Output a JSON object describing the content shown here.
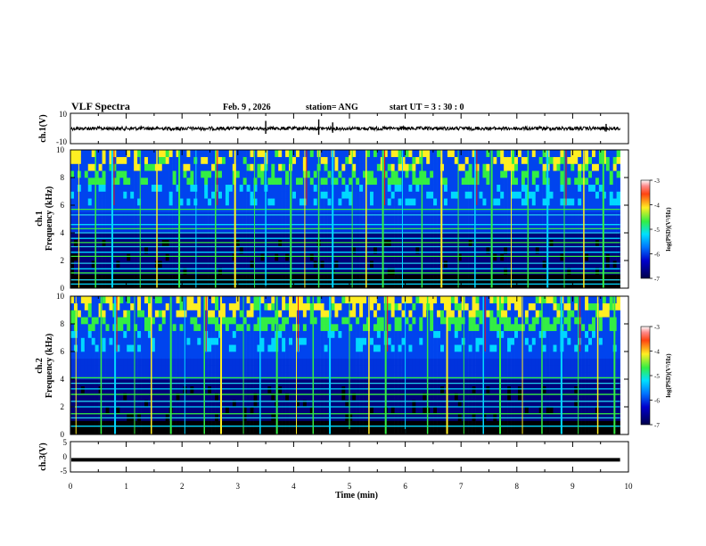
{
  "header": {
    "title": "VLF Spectra",
    "date": "Feb. 9  , 2026",
    "station": "station= ANG",
    "start": "start  UT =   3  : 30 : 0"
  },
  "colors": {
    "black": "#000000",
    "navy": "#00007a",
    "blue": "#0033dd",
    "cyan": "#00d8ff",
    "green": "#33ee44",
    "yellow": "#ffee22",
    "red": "#ee1111",
    "white": "#ffffff"
  },
  "chart_data": [
    {
      "type": "line",
      "panel": "ch1-waveform",
      "ylabel": "ch.1(V)",
      "yticks": [
        "10",
        "-10"
      ],
      "ylim": [
        -10,
        10
      ],
      "baseline": 0,
      "spikes": [
        {
          "t": 3.5,
          "v": 5
        },
        {
          "t": 4.45,
          "v": 6
        },
        {
          "t": 4.7,
          "v": 4
        },
        {
          "t": 9.6,
          "v": 3
        }
      ]
    },
    {
      "type": "heatmap",
      "panel": "ch1-spectrogram",
      "xlabel": "",
      "ylabel": "Frequency (kHz)",
      "channel_label": "ch.1",
      "xlim": [
        0,
        10
      ],
      "ylim": [
        0,
        10
      ],
      "yticks": [
        "0",
        "2",
        "4",
        "6",
        "8",
        "10"
      ],
      "colorbar": {
        "label": "log(PSD)(V²/Hz)",
        "ticks": [
          "-3",
          "-4",
          "-5",
          "-6",
          "-7"
        ],
        "range": [
          -7,
          -3
        ]
      },
      "lines_khz": [
        0.3,
        0.6,
        1.1,
        1.4,
        1.8,
        2.3,
        2.6,
        3.0,
        3.3,
        3.6,
        4.0,
        4.3,
        4.6,
        5.3,
        5.7
      ],
      "sferic_times_min": [
        0.15,
        0.45,
        0.75,
        1.25,
        1.55,
        1.95,
        2.25,
        2.6,
        2.95,
        3.3,
        3.5,
        3.95,
        4.2,
        4.45,
        4.7,
        5.05,
        5.3,
        5.6,
        5.95,
        6.3,
        6.65,
        6.95,
        7.25,
        7.55,
        7.9,
        8.2,
        8.55,
        8.85,
        9.2,
        9.55
      ]
    },
    {
      "type": "heatmap",
      "panel": "ch2-spectrogram",
      "xlabel": "",
      "ylabel": "Frequency (kHz)",
      "channel_label": "ch.2",
      "xlim": [
        0,
        10
      ],
      "ylim": [
        0,
        10
      ],
      "yticks": [
        "0",
        "2",
        "4",
        "6",
        "8",
        "10"
      ],
      "colorbar": {
        "label": "log(PSD)(V²/Hz)",
        "ticks": [
          "-3",
          "-4",
          "-5",
          "-6",
          "-7"
        ],
        "range": [
          -7,
          -3
        ]
      },
      "lines_khz": [
        0.6,
        1.2,
        1.5,
        2.0,
        2.4,
        2.9,
        3.3,
        3.7,
        4.1
      ],
      "sferic_times_min": [
        0.1,
        0.55,
        0.8,
        1.15,
        1.45,
        1.8,
        2.05,
        2.4,
        2.7,
        3.1,
        3.4,
        3.7,
        4.05,
        4.35,
        4.65,
        5.0,
        5.35,
        5.65,
        6.0,
        6.4,
        6.75,
        7.05,
        7.4,
        7.7,
        8.1,
        8.45,
        8.8,
        9.1,
        9.45,
        9.75
      ]
    },
    {
      "type": "line",
      "panel": "ch3-waveform",
      "ylabel": "ch.3(V)",
      "yticks": [
        "5",
        "0",
        "-5"
      ],
      "ylim": [
        -5,
        5
      ],
      "baseline": -1
    }
  ],
  "xaxis": {
    "label": "Time  (min)",
    "ticks": [
      "0",
      "1",
      "2",
      "3",
      "4",
      "5",
      "6",
      "7",
      "8",
      "9",
      "10"
    ],
    "xlim": [
      0,
      10
    ],
    "data_end": 9.85
  }
}
